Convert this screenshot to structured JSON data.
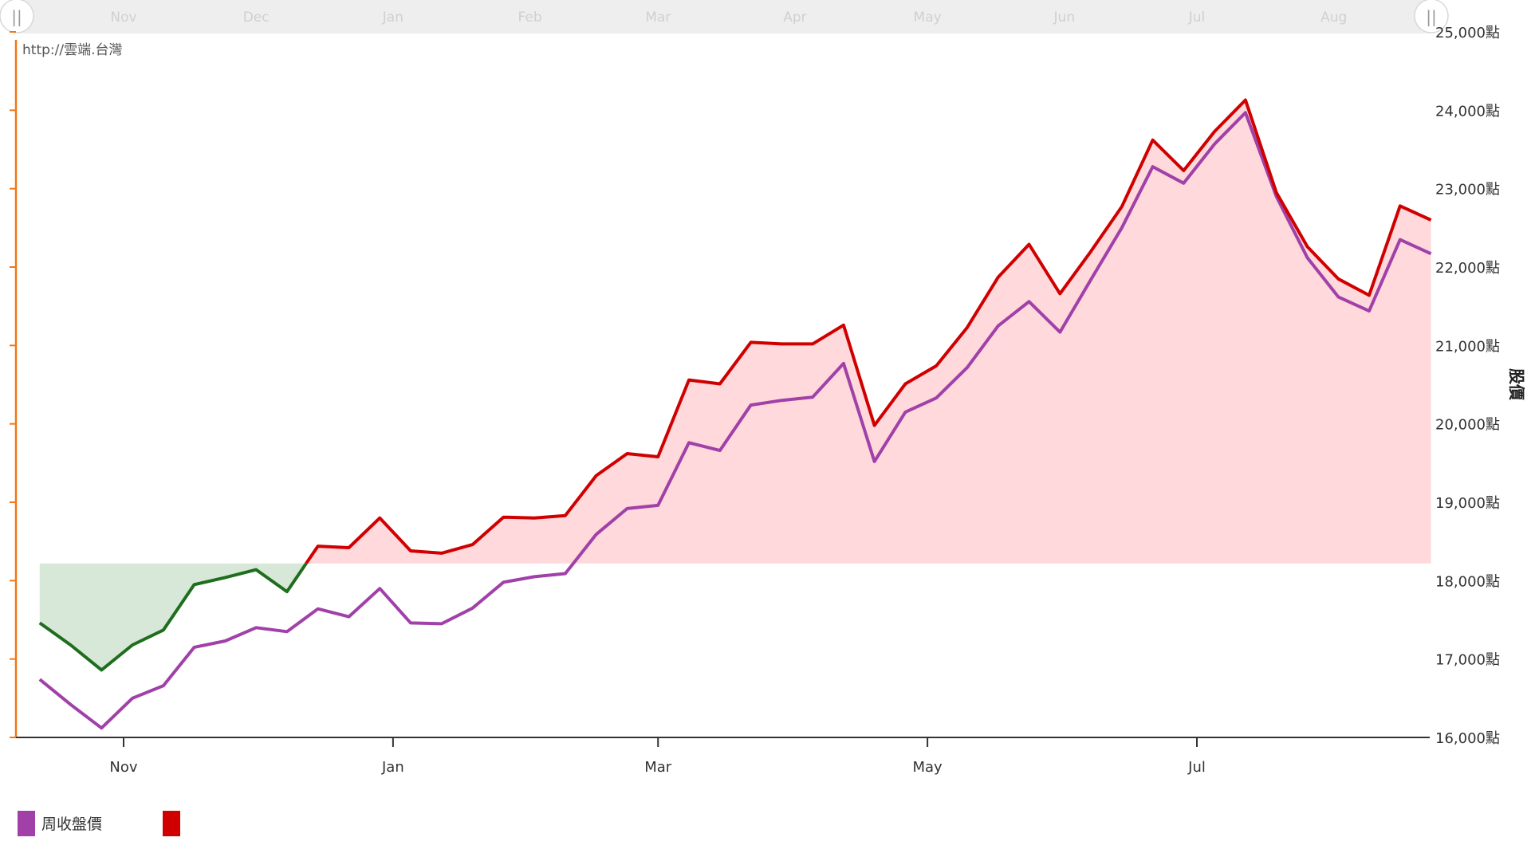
{
  "credit": "http://雲端.台灣",
  "chart_data": {
    "type": "line",
    "ylabel": "股價",
    "ylim": [
      16000,
      25000
    ],
    "y_ticks": [
      "16,000點",
      "17,000點",
      "18,000點",
      "19,000點",
      "20,000點",
      "21,000點",
      "22,000點",
      "23,000點",
      "24,000點",
      "25,000點"
    ],
    "y_tick_values": [
      16000,
      17000,
      18000,
      19000,
      20000,
      21000,
      22000,
      23000,
      24000,
      25000
    ],
    "x_ticks": [
      {
        "label": "Nov",
        "date": "2023-11-01"
      },
      {
        "label": "Jan",
        "date": "2024-01-01"
      },
      {
        "label": "Mar",
        "date": "2024-03-01"
      },
      {
        "label": "May",
        "date": "2024-05-01"
      },
      {
        "label": "Jul",
        "date": "2024-07-01"
      }
    ],
    "scrollbar_months": [
      {
        "label": "Nov",
        "date": "2023-11-01"
      },
      {
        "label": "Dec",
        "date": "2023-12-01"
      },
      {
        "label": "Jan",
        "date": "2024-01-01"
      },
      {
        "label": "Feb",
        "date": "2024-02-01"
      },
      {
        "label": "Mar",
        "date": "2024-03-01"
      },
      {
        "label": "Apr",
        "date": "2024-04-01"
      },
      {
        "label": "May",
        "date": "2024-05-01"
      },
      {
        "label": "Jun",
        "date": "2024-06-01"
      },
      {
        "label": "Jul",
        "date": "2024-07-01"
      },
      {
        "label": "Aug",
        "date": "2024-08-01"
      }
    ],
    "baseline": 18220,
    "x": [
      "2023-10-13",
      "2023-10-20",
      "2023-10-27",
      "2023-11-03",
      "2023-11-10",
      "2023-11-17",
      "2023-11-24",
      "2023-12-01",
      "2023-12-08",
      "2023-12-15",
      "2023-12-22",
      "2023-12-29",
      "2024-01-05",
      "2024-01-12",
      "2024-01-19",
      "2024-01-26",
      "2024-02-02",
      "2024-02-09",
      "2024-02-16",
      "2024-02-23",
      "2024-03-01",
      "2024-03-08",
      "2024-03-15",
      "2024-03-22",
      "2024-03-29",
      "2024-04-05",
      "2024-04-12",
      "2024-04-19",
      "2024-04-26",
      "2024-05-03",
      "2024-05-10",
      "2024-05-17",
      "2024-05-24",
      "2024-05-31",
      "2024-06-07",
      "2024-06-14",
      "2024-06-21",
      "2024-06-28",
      "2024-07-05",
      "2024-07-12",
      "2024-07-19",
      "2024-07-26",
      "2024-08-02",
      "2024-08-09",
      "2024-08-16",
      "2024-08-23",
      "2024-08-30"
    ],
    "series": [
      {
        "name": "周收盤價",
        "color": "#a040a8",
        "values": [
          16740,
          16420,
          16120,
          16500,
          16660,
          17150,
          17230,
          17400,
          17350,
          17640,
          17540,
          17900,
          17460,
          17450,
          17650,
          17980,
          18050,
          18090,
          18590,
          18920,
          18960,
          19760,
          19660,
          20240,
          20300,
          20340,
          20770,
          19520,
          20150,
          20330,
          20720,
          21250,
          21560,
          21170,
          21840,
          22500,
          23280,
          23070,
          23570,
          23970,
          22900,
          22120,
          21620,
          21440,
          22350,
          22170,
          null
        ]
      },
      {
        "name": "",
        "color": "#d00000",
        "values": [
          17460,
          17180,
          16860,
          17180,
          17370,
          17950,
          18040,
          18140,
          17860,
          18440,
          18420,
          18800,
          18380,
          18350,
          18460,
          18810,
          18800,
          18830,
          19340,
          19620,
          19580,
          20560,
          20510,
          21040,
          21020,
          21020,
          21260,
          19980,
          20510,
          20740,
          21230,
          21870,
          22290,
          21660,
          22200,
          22770,
          23620,
          23230,
          23730,
          24130,
          22950,
          22260,
          21850,
          21640,
          22780,
          22600,
          null
        ]
      }
    ],
    "colors": {
      "fill_above": "#ffd9dc",
      "fill_below": "#d8e8d8",
      "line_below": "#1e6e1e",
      "axis_left": "#f07818",
      "scrollbar_bg": "#eeeeee"
    }
  }
}
